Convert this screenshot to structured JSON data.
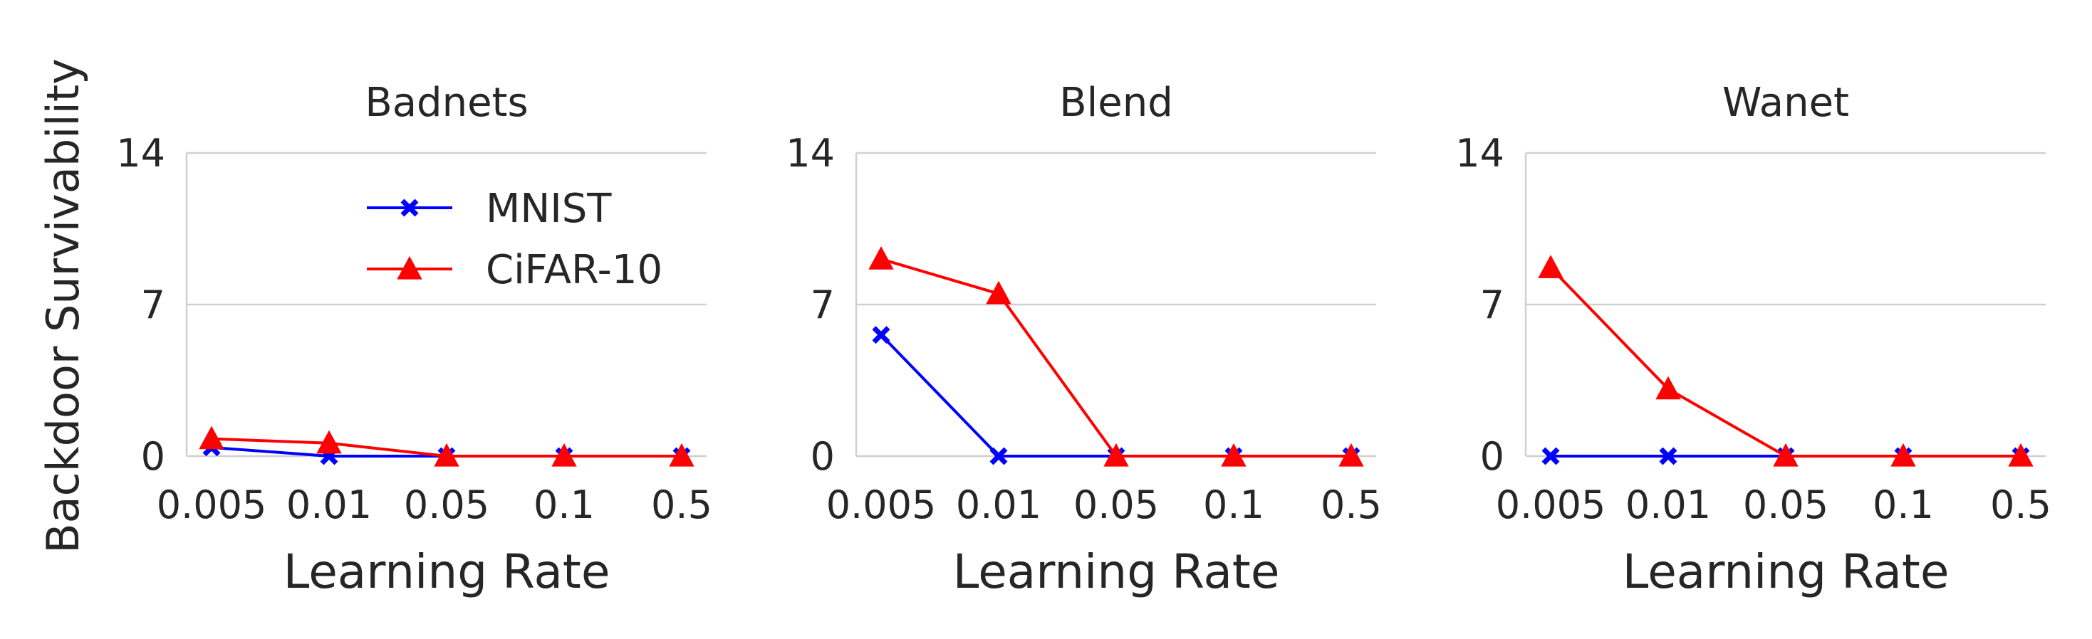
{
  "figure": {
    "ylabel": "Backdoor Survivability",
    "legend": {
      "position": "upper-center",
      "entries": [
        "MNIST",
        "CiFAR-10"
      ]
    }
  },
  "chart_data": [
    {
      "type": "line",
      "title": "Badnets",
      "xlabel": "Learning Rate",
      "ylabel": "Backdoor Survivability",
      "categories": [
        "0.005",
        "0.01",
        "0.05",
        "0.1",
        "0.5"
      ],
      "ylim": [
        0,
        14
      ],
      "yticks": [
        0,
        7,
        14
      ],
      "grid": true,
      "series": [
        {
          "name": "MNIST",
          "values": [
            0.4,
            0.0,
            0.0,
            0.0,
            0.0
          ],
          "color": "#0000ff",
          "marker": "x"
        },
        {
          "name": "CiFAR-10",
          "values": [
            0.8,
            0.6,
            0.0,
            0.0,
            0.0
          ],
          "color": "#ff0000",
          "marker": "triangle"
        }
      ]
    },
    {
      "type": "line",
      "title": "Blend",
      "xlabel": "Learning Rate",
      "categories": [
        "0.005",
        "0.01",
        "0.05",
        "0.1",
        "0.5"
      ],
      "ylim": [
        0,
        14
      ],
      "yticks": [
        0,
        7,
        14
      ],
      "grid": true,
      "series": [
        {
          "name": "MNIST",
          "values": [
            5.6,
            0.0,
            0.0,
            0.0,
            0.0
          ],
          "color": "#0000ff",
          "marker": "x"
        },
        {
          "name": "CiFAR-10",
          "values": [
            9.1,
            7.5,
            0.0,
            0.0,
            0.0
          ],
          "color": "#ff0000",
          "marker": "triangle"
        }
      ]
    },
    {
      "type": "line",
      "title": "Wanet",
      "xlabel": "Learning Rate",
      "categories": [
        "0.005",
        "0.01",
        "0.05",
        "0.1",
        "0.5"
      ],
      "ylim": [
        0,
        14
      ],
      "yticks": [
        0,
        7,
        14
      ],
      "grid": true,
      "series": [
        {
          "name": "MNIST",
          "values": [
            0.0,
            0.0,
            0.0,
            0.0,
            0.0
          ],
          "color": "#0000ff",
          "marker": "x"
        },
        {
          "name": "CiFAR-10",
          "values": [
            8.7,
            3.1,
            0.0,
            0.0,
            0.0
          ],
          "color": "#ff0000",
          "marker": "triangle"
        }
      ]
    }
  ]
}
